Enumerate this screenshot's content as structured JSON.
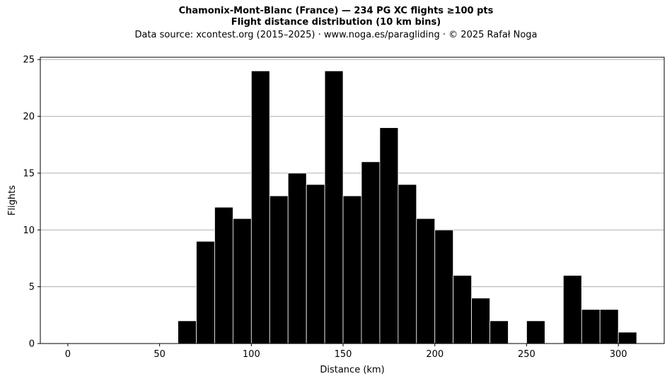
{
  "chart_data": {
    "type": "bar",
    "title": "Chamonix-Mont-Blanc (France)  —  234 PG XC flights ≥100 pts",
    "subtitle": "Flight distance distribution (10 km bins)",
    "source": "Data source: xcontest.org (2015–2025)  ·  www.noga.es/paragliding  ·  © 2025 Rafał Noga",
    "xlabel": "Distance (km)",
    "ylabel": "Flights",
    "xlim": [
      -15,
      325
    ],
    "ylim": [
      0,
      25.2
    ],
    "bin_width": 10,
    "x_ticks": [
      0,
      50,
      100,
      150,
      200,
      250,
      300
    ],
    "y_ticks": [
      0,
      5,
      10,
      15,
      20,
      25
    ],
    "grid": "horizontal",
    "bar_color": "#000000",
    "bar_edge_color": "#ffffff",
    "bins": [
      {
        "start": 60,
        "count": 2
      },
      {
        "start": 70,
        "count": 9
      },
      {
        "start": 80,
        "count": 12
      },
      {
        "start": 90,
        "count": 11
      },
      {
        "start": 100,
        "count": 24
      },
      {
        "start": 110,
        "count": 13
      },
      {
        "start": 120,
        "count": 15
      },
      {
        "start": 130,
        "count": 14
      },
      {
        "start": 140,
        "count": 24
      },
      {
        "start": 150,
        "count": 13
      },
      {
        "start": 160,
        "count": 16
      },
      {
        "start": 170,
        "count": 19
      },
      {
        "start": 180,
        "count": 14
      },
      {
        "start": 190,
        "count": 11
      },
      {
        "start": 200,
        "count": 10
      },
      {
        "start": 210,
        "count": 6
      },
      {
        "start": 220,
        "count": 4
      },
      {
        "start": 230,
        "count": 2
      },
      {
        "start": 250,
        "count": 2
      },
      {
        "start": 270,
        "count": 6
      },
      {
        "start": 280,
        "count": 3
      },
      {
        "start": 290,
        "count": 3
      },
      {
        "start": 300,
        "count": 1
      }
    ]
  }
}
